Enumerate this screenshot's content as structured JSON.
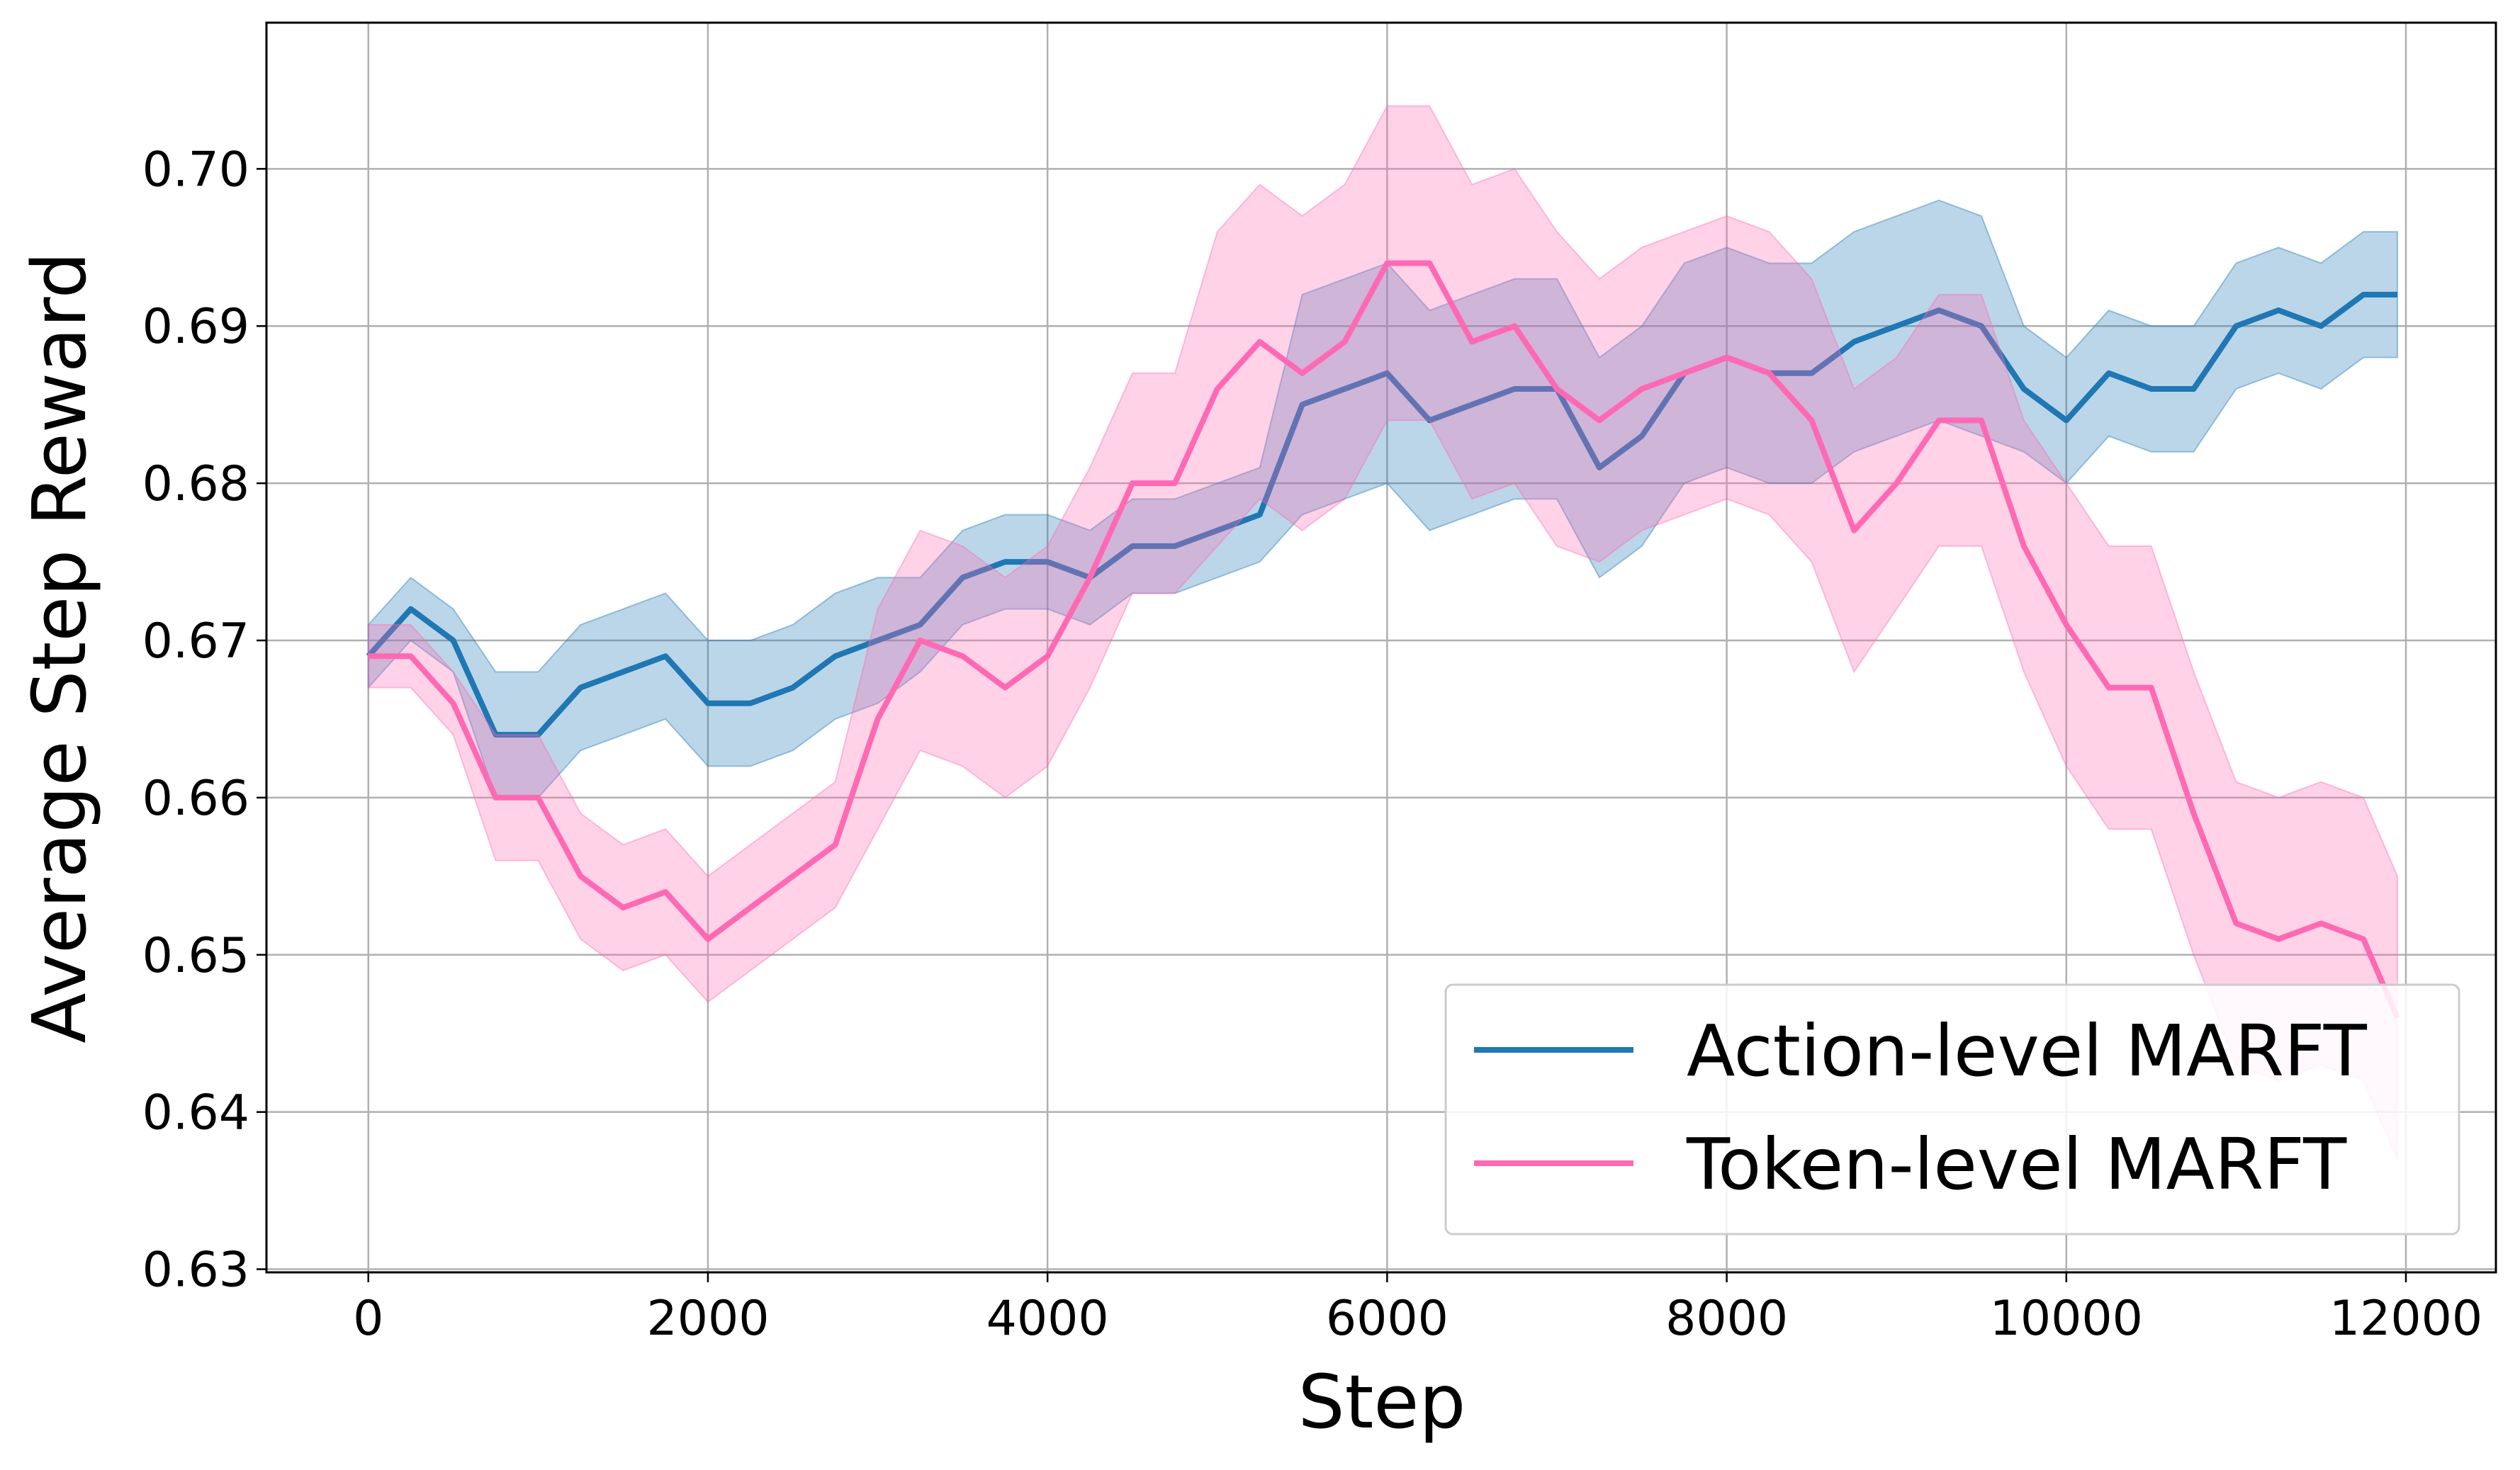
{
  "chart_data": {
    "type": "line",
    "xlabel": "Step",
    "ylabel": "Average Step Reward",
    "x": [
      0,
      250,
      500,
      750,
      1000,
      1250,
      1500,
      1750,
      2000,
      2250,
      2500,
      2750,
      3000,
      3250,
      3500,
      3750,
      4000,
      4250,
      4500,
      4750,
      5000,
      5250,
      5500,
      5750,
      6000,
      6250,
      6500,
      6750,
      7000,
      7250,
      7500,
      7750,
      8000,
      8250,
      8500,
      8750,
      9000,
      9250,
      9500,
      9750,
      10000,
      10250,
      10500,
      10750,
      11000,
      11250,
      11500,
      11750,
      11950
    ],
    "series": [
      {
        "name": "Action-level MARFT",
        "color": "#1f77b4",
        "values": [
          0.669,
          0.672,
          0.67,
          0.664,
          0.664,
          0.667,
          0.668,
          0.669,
          0.666,
          0.666,
          0.667,
          0.669,
          0.67,
          0.671,
          0.674,
          0.675,
          0.675,
          0.674,
          0.676,
          0.676,
          0.677,
          0.678,
          0.685,
          0.686,
          0.687,
          0.684,
          0.685,
          0.686,
          0.686,
          0.681,
          0.683,
          0.687,
          0.688,
          0.687,
          0.687,
          0.689,
          0.69,
          0.691,
          0.69,
          0.686,
          0.684,
          0.687,
          0.686,
          0.686,
          0.69,
          0.691,
          0.69,
          0.692,
          0.692
        ],
        "lower": [
          0.667,
          0.67,
          0.668,
          0.66,
          0.66,
          0.663,
          0.664,
          0.665,
          0.662,
          0.662,
          0.663,
          0.665,
          0.666,
          0.668,
          0.671,
          0.672,
          0.672,
          0.671,
          0.673,
          0.673,
          0.674,
          0.675,
          0.678,
          0.679,
          0.68,
          0.677,
          0.678,
          0.679,
          0.679,
          0.674,
          0.676,
          0.68,
          0.681,
          0.68,
          0.68,
          0.682,
          0.683,
          0.684,
          0.683,
          0.682,
          0.68,
          0.683,
          0.682,
          0.682,
          0.686,
          0.687,
          0.686,
          0.688,
          0.688
        ],
        "upper": [
          0.671,
          0.674,
          0.672,
          0.668,
          0.668,
          0.671,
          0.672,
          0.673,
          0.67,
          0.67,
          0.671,
          0.673,
          0.674,
          0.674,
          0.677,
          0.678,
          0.678,
          0.677,
          0.679,
          0.679,
          0.68,
          0.681,
          0.692,
          0.693,
          0.694,
          0.691,
          0.692,
          0.693,
          0.693,
          0.688,
          0.69,
          0.694,
          0.695,
          0.694,
          0.694,
          0.696,
          0.697,
          0.698,
          0.697,
          0.69,
          0.688,
          0.691,
          0.69,
          0.69,
          0.694,
          0.695,
          0.694,
          0.696,
          0.696
        ]
      },
      {
        "name": "Token-level MARFT",
        "color": "#ff69b4",
        "values": [
          0.669,
          0.669,
          0.666,
          0.66,
          0.66,
          0.655,
          0.653,
          0.654,
          0.651,
          0.653,
          0.655,
          0.657,
          0.665,
          0.67,
          0.669,
          0.667,
          0.669,
          0.674,
          0.68,
          0.68,
          0.686,
          0.689,
          0.687,
          0.689,
          0.694,
          0.694,
          0.689,
          0.69,
          0.686,
          0.684,
          0.686,
          0.687,
          0.688,
          0.687,
          0.684,
          0.677,
          0.68,
          0.684,
          0.684,
          0.676,
          0.671,
          0.667,
          0.667,
          0.659,
          0.652,
          0.651,
          0.652,
          0.651,
          0.646
        ],
        "lower": [
          0.667,
          0.667,
          0.664,
          0.656,
          0.656,
          0.651,
          0.649,
          0.65,
          0.647,
          0.649,
          0.651,
          0.653,
          0.658,
          0.663,
          0.662,
          0.66,
          0.662,
          0.667,
          0.673,
          0.673,
          0.676,
          0.679,
          0.677,
          0.679,
          0.684,
          0.684,
          0.679,
          0.68,
          0.676,
          0.675,
          0.677,
          0.678,
          0.679,
          0.678,
          0.675,
          0.668,
          0.672,
          0.676,
          0.676,
          0.668,
          0.662,
          0.658,
          0.658,
          0.65,
          0.643,
          0.642,
          0.643,
          0.642,
          0.637
        ],
        "upper": [
          0.671,
          0.671,
          0.668,
          0.664,
          0.664,
          0.659,
          0.657,
          0.658,
          0.655,
          0.657,
          0.659,
          0.661,
          0.672,
          0.677,
          0.676,
          0.674,
          0.676,
          0.681,
          0.687,
          0.687,
          0.696,
          0.699,
          0.697,
          0.699,
          0.704,
          0.704,
          0.699,
          0.7,
          0.696,
          0.693,
          0.695,
          0.696,
          0.697,
          0.696,
          0.693,
          0.686,
          0.688,
          0.692,
          0.692,
          0.684,
          0.68,
          0.676,
          0.676,
          0.668,
          0.661,
          0.66,
          0.661,
          0.66,
          0.655
        ]
      }
    ],
    "xlim": [
      -600,
      12530
    ],
    "ylim": [
      0.6298,
      0.7093
    ],
    "xticks": [
      0,
      2000,
      4000,
      6000,
      8000,
      10000,
      12000
    ],
    "yticks": [
      0.63,
      0.64,
      0.65,
      0.66,
      0.67,
      0.68,
      0.69,
      {
        "value": 0.7,
        "label": "0.70"
      }
    ],
    "grid": true,
    "legend": "lower right"
  }
}
